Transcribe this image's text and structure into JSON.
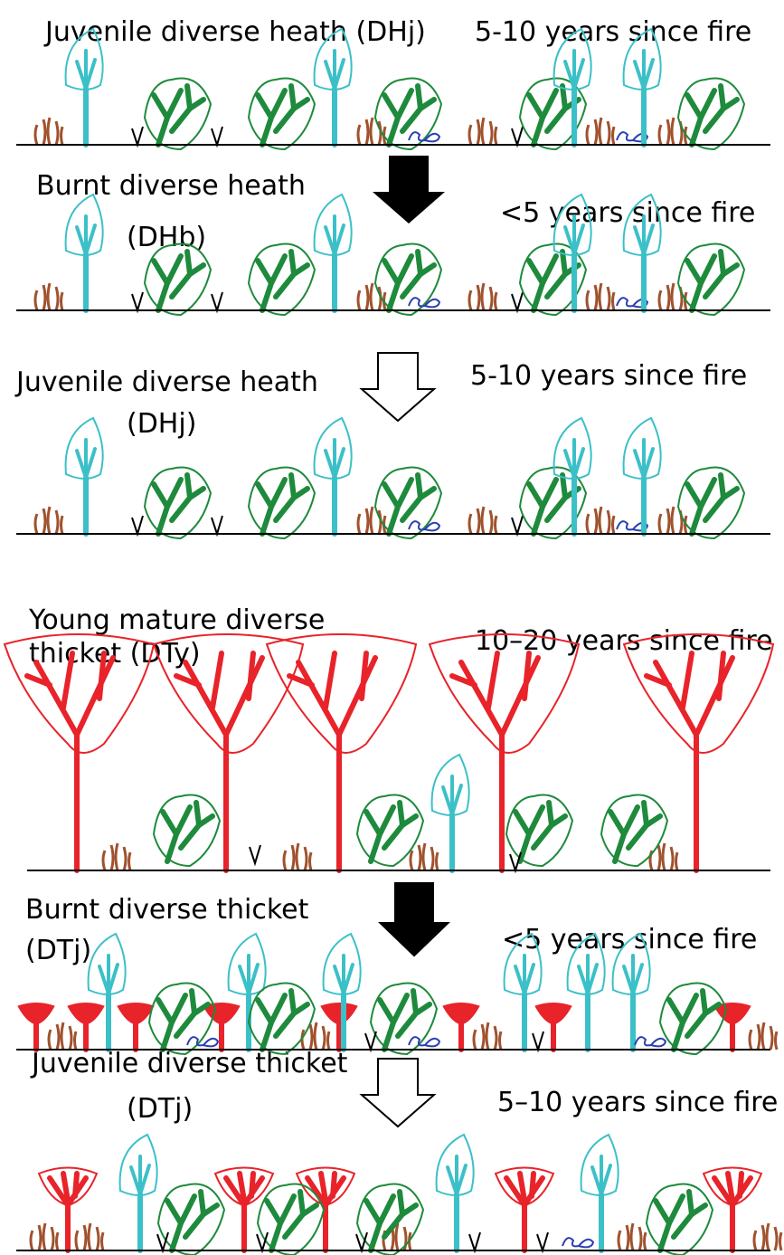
{
  "panels": [
    {
      "label_lines": [
        "Juvenile diverse heath (DHj)"
      ],
      "time": "5-10 years since fire"
    },
    {
      "label_lines": [
        "Burnt diverse heath",
        "(DHb)"
      ],
      "time": "<5 years since fire"
    },
    {
      "label_lines": [
        "Juvenile diverse heath",
        "(DHj)"
      ],
      "time": "5-10 years since fire"
    },
    {
      "label_lines": [
        "Young mature diverse",
        "thicket (DTy)"
      ],
      "time": "10–20 years since fire"
    },
    {
      "label_lines": [
        "Burnt diverse thicket",
        "(DTj)"
      ],
      "time": "<5 years since fire"
    },
    {
      "label_lines": [
        "Juvenile diverse thicket",
        "(DTj)"
      ],
      "time": "5–10 years since fire"
    }
  ]
}
